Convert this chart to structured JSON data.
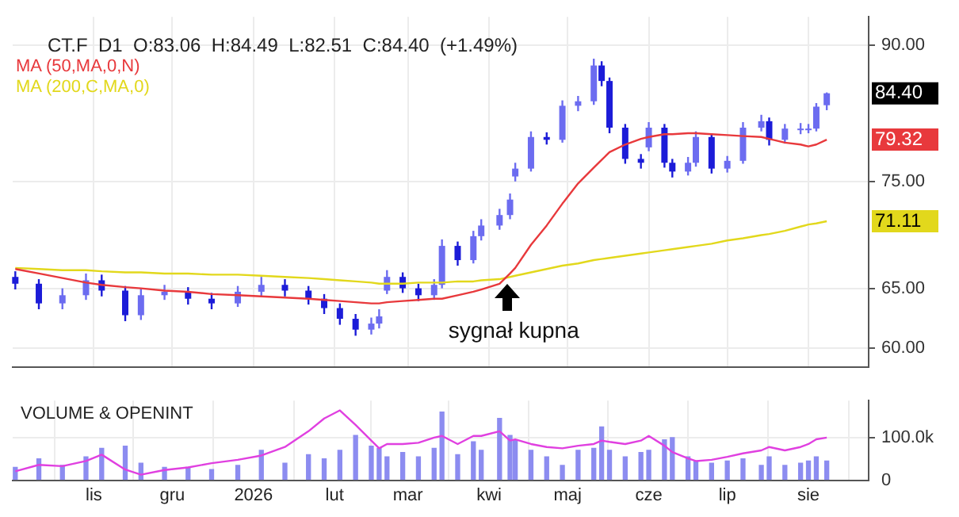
{
  "chart_data": [
    {
      "type": "candlestick",
      "title": "CT.F  D1  O:83.06  H:84.49  L:82.51  C:84.40  (+1.49%)",
      "x": [
        "2025-10-02",
        "2025-10-11",
        "2025-10-20",
        "2025-10-29",
        "2025-11-04",
        "2025-11-13",
        "2025-11-19",
        "2025-11-28",
        "2025-12-07",
        "2025-12-16",
        "2025-12-26",
        "2026-01-04",
        "2026-01-13",
        "2026-01-22",
        "2026-01-28",
        "2026-02-03",
        "2026-02-09",
        "2026-02-15",
        "2026-02-18",
        "2026-02-21",
        "2026-02-27",
        "2026-03-05",
        "2026-03-11",
        "2026-03-14",
        "2026-03-20",
        "2026-03-26",
        "2026-03-29",
        "2026-04-05",
        "2026-04-09",
        "2026-04-11",
        "2026-04-17",
        "2026-04-23",
        "2026-04-29",
        "2026-05-05",
        "2026-05-11",
        "2026-05-14",
        "2026-05-17",
        "2026-05-23",
        "2026-05-29",
        "2026-06-01",
        "2026-06-07",
        "2026-06-10",
        "2026-06-16",
        "2026-06-19",
        "2026-06-25",
        "2026-07-01",
        "2026-07-07",
        "2026-07-14",
        "2026-07-17",
        "2026-07-23",
        "2026-07-29",
        "2026-08-01",
        "2026-08-04",
        "2026-08-08"
      ],
      "ohlc": [
        [
          66.0,
          66.5,
          64.9,
          65.4
        ],
        [
          65.4,
          65.8,
          63.2,
          63.7
        ],
        [
          63.7,
          65.0,
          63.2,
          64.4
        ],
        [
          64.4,
          66.3,
          64.0,
          65.7
        ],
        [
          65.7,
          66.2,
          64.3,
          64.8
        ],
        [
          64.8,
          65.2,
          62.2,
          62.7
        ],
        [
          62.7,
          65.0,
          62.3,
          64.4
        ],
        [
          64.4,
          65.3,
          64.0,
          64.7
        ],
        [
          64.7,
          65.1,
          63.6,
          64.1
        ],
        [
          64.1,
          64.6,
          63.2,
          63.7
        ],
        [
          63.7,
          65.2,
          63.4,
          64.7
        ],
        [
          64.7,
          66.0,
          64.3,
          65.3
        ],
        [
          65.3,
          65.8,
          64.3,
          64.8
        ],
        [
          64.8,
          65.2,
          63.6,
          64.1
        ],
        [
          64.1,
          64.5,
          62.8,
          63.3
        ],
        [
          63.3,
          63.7,
          61.9,
          62.4
        ],
        [
          62.4,
          62.8,
          61.0,
          61.5
        ],
        [
          61.5,
          62.5,
          61.1,
          62.0
        ],
        [
          62.0,
          63.2,
          61.6,
          62.6
        ],
        [
          64.8,
          66.6,
          64.5,
          66.0
        ],
        [
          66.0,
          66.4,
          64.6,
          65.0
        ],
        [
          65.0,
          65.4,
          63.9,
          64.4
        ],
        [
          64.4,
          65.8,
          64.0,
          65.3
        ],
        [
          65.3,
          69.4,
          65.0,
          68.8
        ],
        [
          68.8,
          69.2,
          67.0,
          67.5
        ],
        [
          67.5,
          70.2,
          67.2,
          69.7
        ],
        [
          69.7,
          71.3,
          69.3,
          70.7
        ],
        [
          70.7,
          72.3,
          70.3,
          71.7
        ],
        [
          71.7,
          73.8,
          71.3,
          73.2
        ],
        [
          75.5,
          76.9,
          75.0,
          76.3
        ],
        [
          76.3,
          80.2,
          76.0,
          79.6
        ],
        [
          79.6,
          80.1,
          78.8,
          79.3
        ],
        [
          79.3,
          83.6,
          79.0,
          83.0
        ],
        [
          83.0,
          84.1,
          82.4,
          83.5
        ],
        [
          83.5,
          88.4,
          83.1,
          87.6
        ],
        [
          87.6,
          88.1,
          85.2,
          85.8
        ],
        [
          85.8,
          86.2,
          80.0,
          80.6
        ],
        [
          80.6,
          81.0,
          76.8,
          77.3
        ],
        [
          77.3,
          77.8,
          76.3,
          76.9
        ],
        [
          78.5,
          81.2,
          78.1,
          80.6
        ],
        [
          80.6,
          81.0,
          76.4,
          76.9
        ],
        [
          76.9,
          77.3,
          75.4,
          76.0
        ],
        [
          76.0,
          77.5,
          75.6,
          76.9
        ],
        [
          76.9,
          80.2,
          76.5,
          79.6
        ],
        [
          79.6,
          80.0,
          75.8,
          76.3
        ],
        [
          76.3,
          77.6,
          75.9,
          77.1
        ],
        [
          77.1,
          81.2,
          76.8,
          80.6
        ],
        [
          80.6,
          82.0,
          80.2,
          81.3
        ],
        [
          81.3,
          81.7,
          78.7,
          79.3
        ],
        [
          79.3,
          81.0,
          78.9,
          80.5
        ],
        [
          80.5,
          81.1,
          79.9,
          80.5
        ],
        [
          80.5,
          81.0,
          80.0,
          80.5
        ],
        [
          80.5,
          83.3,
          80.2,
          82.9
        ],
        [
          83.06,
          84.49,
          82.51,
          84.4
        ]
      ],
      "colors": [
        "#1c1cd8",
        "#1c1cd8",
        "#6c6cf0",
        "#6c6cf0",
        "#1c1cd8",
        "#1c1cd8",
        "#6c6cf0",
        "#6c6cf0",
        "#1c1cd8",
        "#1c1cd8",
        "#6c6cf0",
        "#6c6cf0",
        "#1c1cd8",
        "#1c1cd8",
        "#1c1cd8",
        "#1c1cd8",
        "#1c1cd8",
        "#6c6cf0",
        "#6c6cf0",
        "#6c6cf0",
        "#1c1cd8",
        "#1c1cd8",
        "#6c6cf0",
        "#6c6cf0",
        "#1c1cd8",
        "#6c6cf0",
        "#6c6cf0",
        "#6c6cf0",
        "#6c6cf0",
        "#6c6cf0",
        "#6c6cf0",
        "#1c1cd8",
        "#6c6cf0",
        "#6c6cf0",
        "#6c6cf0",
        "#1c1cd8",
        "#1c1cd8",
        "#1c1cd8",
        "#1c1cd8",
        "#6c6cf0",
        "#1c1cd8",
        "#1c1cd8",
        "#6c6cf0",
        "#6c6cf0",
        "#1c1cd8",
        "#6c6cf0",
        "#6c6cf0",
        "#6c6cf0",
        "#1c1cd8",
        "#6c6cf0",
        "#6c6cf0",
        "#6c6cf0",
        "#6c6cf0",
        "#6c6cf0"
      ],
      "series": [
        {
          "type": "line",
          "name": "MA (50,MA,0,N)",
          "color": "#e8393c",
          "values": [
            66.7,
            66.3,
            65.9,
            65.5,
            65.3,
            65.1,
            65.0,
            64.8,
            64.7,
            64.5,
            64.4,
            64.3,
            64.2,
            64.1,
            64.0,
            63.9,
            63.8,
            63.7,
            63.7,
            63.8,
            63.9,
            64.0,
            64.1,
            64.1,
            64.4,
            64.7,
            64.9,
            65.4,
            66.3,
            66.8,
            68.9,
            70.7,
            72.8,
            74.8,
            76.4,
            77.2,
            78.0,
            78.8,
            79.4,
            79.6,
            79.9,
            79.9,
            80.0,
            80.0,
            79.9,
            79.8,
            79.7,
            79.6,
            79.4,
            79.0,
            78.8,
            78.6,
            78.8,
            79.32
          ]
        },
        {
          "type": "line",
          "name": "MA (200,C,MA,0)",
          "color": "#e2d81c",
          "values": [
            66.8,
            66.7,
            66.6,
            66.6,
            66.5,
            66.4,
            66.4,
            66.3,
            66.3,
            66.2,
            66.2,
            66.1,
            66.0,
            65.9,
            65.8,
            65.7,
            65.6,
            65.5,
            65.4,
            65.4,
            65.4,
            65.5,
            65.5,
            65.5,
            65.6,
            65.6,
            65.7,
            65.8,
            66.0,
            66.1,
            66.4,
            66.7,
            67.0,
            67.2,
            67.5,
            67.6,
            67.7,
            67.9,
            68.1,
            68.2,
            68.4,
            68.5,
            68.7,
            68.8,
            69.0,
            69.3,
            69.5,
            69.8,
            69.9,
            70.2,
            70.6,
            70.8,
            70.9,
            71.11
          ]
        }
      ],
      "log": "y",
      "ylim": [
        58.5,
        93.5
      ],
      "yticks": [
        {
          "value": 60,
          "label": "60.00"
        },
        {
          "value": 65,
          "label": "65.00"
        },
        {
          "value": 75,
          "label": "75.00"
        },
        {
          "value": 90,
          "label": "90.00"
        }
      ],
      "xlim": [
        "2025-10-01",
        "2026-08-24"
      ],
      "xticks": [
        {
          "value": "2025-11-01",
          "label": null
        },
        {
          "value": "2025-12-01",
          "label": null
        },
        {
          "value": "2026-01-01",
          "label": null
        },
        {
          "value": "2026-02-01",
          "label": null
        },
        {
          "value": "2026-03-01",
          "label": null
        },
        {
          "value": "2026-04-01",
          "label": null
        },
        {
          "value": "2026-05-01",
          "label": null
        },
        {
          "value": "2026-06-01",
          "label": null
        },
        {
          "value": "2026-07-01",
          "label": null
        },
        {
          "value": "2026-08-01",
          "label": null
        }
      ],
      "tick_labels": "y",
      "grid": true,
      "legend": "top left",
      "annotations": [
        {
          "text": "sygnał kupna",
          "x": "2026-04-08",
          "y": 65.9
        },
        "84.40",
        "79.32",
        "71.11"
      ]
    },
    {
      "type": "bar",
      "title": "VOLUME & OPENINT",
      "x": [
        "2025-10-02",
        "2025-10-11",
        "2025-10-20",
        "2025-10-29",
        "2025-11-04",
        "2025-11-13",
        "2025-11-19",
        "2025-11-28",
        "2025-12-07",
        "2025-12-16",
        "2025-12-26",
        "2026-01-04",
        "2026-01-13",
        "2026-01-22",
        "2026-01-28",
        "2026-02-03",
        "2026-02-09",
        "2026-02-15",
        "2026-02-18",
        "2026-02-21",
        "2026-02-27",
        "2026-03-05",
        "2026-03-11",
        "2026-03-14",
        "2026-03-20",
        "2026-03-26",
        "2026-03-29",
        "2026-04-05",
        "2026-04-09",
        "2026-04-11",
        "2026-04-17",
        "2026-04-23",
        "2026-04-29",
        "2026-05-05",
        "2026-05-11",
        "2026-05-14",
        "2026-05-17",
        "2026-05-23",
        "2026-05-29",
        "2026-06-01",
        "2026-06-07",
        "2026-06-10",
        "2026-06-16",
        "2026-06-19",
        "2026-06-25",
        "2026-07-01",
        "2026-07-07",
        "2026-07-14",
        "2026-07-17",
        "2026-07-23",
        "2026-07-29",
        "2026-08-01",
        "2026-08-04",
        "2026-08-08"
      ],
      "series": [
        {
          "type": "bar",
          "color": "#8c8cf0",
          "values": [
            30,
            50,
            35,
            55,
            75,
            80,
            40,
            30,
            30,
            25,
            35,
            70,
            40,
            60,
            50,
            70,
            105,
            80,
            75,
            55,
            65,
            55,
            75,
            160,
            60,
            90,
            70,
            145,
            105,
            95,
            70,
            55,
            35,
            70,
            75,
            125,
            70,
            55,
            65,
            70,
            95,
            100,
            55,
            45,
            40,
            45,
            50,
            35,
            55,
            35,
            40,
            45,
            55,
            45
          ]
        },
        {
          "type": "line",
          "color": "#e040e0",
          "values": [
            21,
            36,
            33,
            45,
            60,
            25,
            13,
            24,
            30,
            40,
            48,
            58,
            78,
            115,
            145,
            164,
            130,
            93,
            75,
            85,
            85,
            88,
            100,
            104,
            85,
            104,
            104,
            115,
            93,
            96,
            85,
            78,
            75,
            81,
            85,
            93,
            90,
            85,
            93,
            104,
            81,
            66,
            51,
            45,
            48,
            55,
            63,
            70,
            78,
            70,
            78,
            85,
            96,
            100
          ]
        }
      ],
      "ylim": [
        0,
        187
      ],
      "yticks": [
        0,
        {
          "value": 100,
          "label": "100.0k"
        }
      ],
      "xlim": [
        "2025-10-01",
        "2026-08-24"
      ],
      "xticks": [
        {
          "value": "2025-11-01",
          "label": "lis"
        },
        {
          "value": "2025-12-01",
          "label": "gru"
        },
        {
          "value": "2026-01-01",
          "label": "2026"
        },
        {
          "value": "2026-02-01",
          "label": "lut"
        },
        {
          "value": "2026-03-01",
          "label": "mar"
        },
        {
          "value": "2026-04-01",
          "label": "kwi"
        },
        {
          "value": "2026-05-01",
          "label": "maj"
        },
        {
          "value": "2026-06-01",
          "label": "cze"
        },
        {
          "value": "2026-07-01",
          "label": "lip"
        },
        {
          "value": "2026-08-01",
          "label": "sie"
        }
      ],
      "grid": true
    }
  ]
}
